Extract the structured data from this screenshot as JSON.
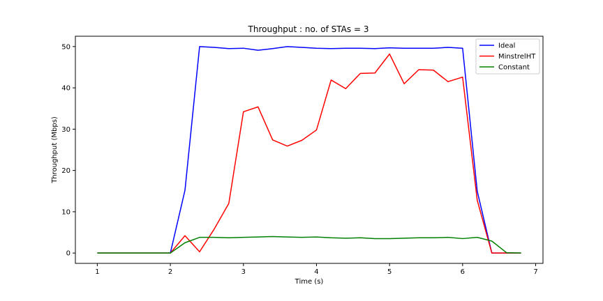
{
  "chart_data": {
    "type": "line",
    "title": "Throughput : no. of STAs = 3",
    "xlabel": "Time (s)",
    "ylabel": "Throughput (Mbps)",
    "xlim": [
      0.7,
      7.1
    ],
    "ylim": [
      -2.5,
      52.5
    ],
    "xticks": [
      1,
      2,
      3,
      4,
      5,
      6,
      7
    ],
    "yticks": [
      0,
      10,
      20,
      30,
      40,
      50
    ],
    "grid": false,
    "legend_position": "top-right",
    "x": [
      1.0,
      1.2,
      1.4,
      1.6,
      1.8,
      2.0,
      2.2,
      2.4,
      2.6,
      2.8,
      3.0,
      3.2,
      3.4,
      3.6,
      3.8,
      4.0,
      4.2,
      4.4,
      4.6,
      4.8,
      5.0,
      5.2,
      5.4,
      5.6,
      5.8,
      6.0,
      6.2,
      6.4,
      6.6,
      6.8
    ],
    "series": [
      {
        "name": "Ideal",
        "color": "#0000ff",
        "values": [
          0,
          0,
          0,
          0,
          0,
          0,
          15.2,
          50.0,
          49.8,
          49.5,
          49.6,
          49.1,
          49.5,
          50.0,
          49.8,
          49.6,
          49.5,
          49.6,
          49.6,
          49.5,
          49.7,
          49.6,
          49.6,
          49.6,
          49.8,
          49.6,
          15.0,
          0,
          0,
          0
        ]
      },
      {
        "name": "MinstrelHT",
        "color": "#ff0000",
        "values": [
          0,
          0,
          0,
          0,
          0,
          0,
          4.2,
          0.3,
          5.8,
          12.0,
          34.2,
          35.4,
          27.4,
          25.9,
          27.3,
          29.8,
          41.9,
          39.8,
          43.5,
          43.6,
          48.2,
          41.0,
          44.4,
          44.3,
          41.5,
          42.6,
          12.8,
          0,
          0,
          0
        ]
      },
      {
        "name": "Constant",
        "color": "#008000",
        "values": [
          0,
          0,
          0,
          0,
          0,
          0,
          2.5,
          3.8,
          3.8,
          3.7,
          3.8,
          3.9,
          4.0,
          3.9,
          3.8,
          3.9,
          3.7,
          3.6,
          3.7,
          3.5,
          3.5,
          3.6,
          3.7,
          3.7,
          3.8,
          3.5,
          3.8,
          2.9,
          0.1,
          0
        ]
      }
    ]
  }
}
